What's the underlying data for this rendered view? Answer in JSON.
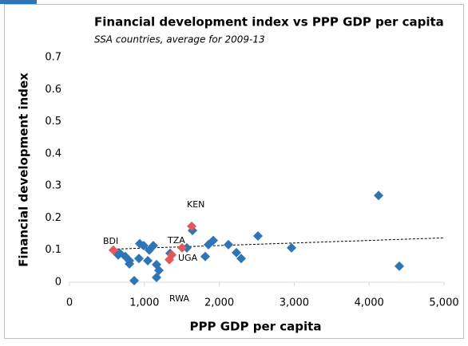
{
  "chart_data": {
    "type": "scatter",
    "title": "Financial development index vs PPP GDP per capita",
    "subtitle": "SSA countries, average for 2009-13",
    "x_label": "PPP GDP per capita",
    "y_label": "Financial development index",
    "xlim": [
      0,
      5000
    ],
    "xticks": [
      {
        "value": 0,
        "label": "0"
      },
      {
        "value": 1000,
        "label": "1,000"
      },
      {
        "value": 2000,
        "label": "2,000"
      },
      {
        "value": 3000,
        "label": "3,000"
      },
      {
        "value": 4000,
        "label": "4,000"
      },
      {
        "value": 5000,
        "label": "5,000"
      }
    ],
    "ylim": [
      0,
      0.7
    ],
    "yticks": [
      0,
      0.1,
      0.2,
      0.3,
      0.4,
      0.5,
      0.6,
      0.7
    ],
    "series": [
      {
        "color": "#2e75b6",
        "x": [
          672,
          650,
          746,
          800,
          800,
          864,
          927,
          938,
          991,
          1045,
          1066,
          1119,
          1162,
          1194,
          1162,
          1343,
          1567,
          1642,
          1812,
          1855,
          1919,
          2122,
          2228,
          2292,
          2516,
          2964,
          4126,
          4403
        ],
        "values": [
          0.09,
          0.085,
          0.08,
          0.067,
          0.057,
          0.005,
          0.074,
          0.12,
          0.114,
          0.067,
          0.1,
          0.114,
          0.055,
          0.037,
          0.015,
          0.09,
          0.107,
          0.161,
          0.08,
          0.117,
          0.13,
          0.117,
          0.092,
          0.074,
          0.144,
          0.107,
          0.27,
          0.05
        ]
      },
      {
        "color": "#e05a5a",
        "x": [
          586,
          1333,
          1365,
          1503,
          1631
        ],
        "values": [
          0.1,
          0.07,
          0.085,
          0.107,
          0.174
        ]
      }
    ],
    "trendline": {
      "x": [
        586,
        5000
      ],
      "values": [
        0.103,
        0.138
      ]
    },
    "annotations": [
      "KEN",
      "BDI",
      "TZA",
      "UGA",
      "RWA"
    ]
  }
}
